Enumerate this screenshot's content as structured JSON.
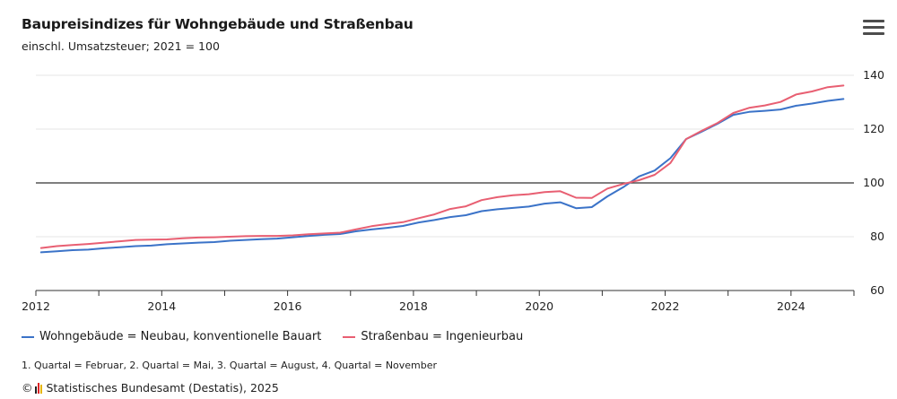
{
  "header": {
    "title": "Baupreisindizes für Wohngebäude und Straßenbau",
    "subtitle": "einschl. Umsatzsteuer; 2021 = 100"
  },
  "legend": {
    "items": [
      {
        "label": "Wohngebäude = Neubau, konventionelle Bauart",
        "color": "#3b73c8"
      },
      {
        "label": "Straßenbau = Ingenieurbau",
        "color": "#e85f72"
      }
    ]
  },
  "footnote": "1. Quartal = Februar, 2. Quartal = Mai, 3. Quartal = August, 4. Quartal = November",
  "credits": {
    "copyright": "©",
    "text": "Statistisches Bundesamt (Destatis), 2025"
  },
  "menu": {
    "icon": "hamburger-menu-icon"
  },
  "chart_data": {
    "type": "line",
    "ylim": [
      60,
      145
    ],
    "yticks": [
      60,
      80,
      100,
      120,
      140
    ],
    "xlim": [
      2012,
      2025
    ],
    "xticks": [
      2012,
      2014,
      2016,
      2018,
      2020,
      2022,
      2024
    ],
    "reference_line": 100,
    "grid": true,
    "y_axis_position": "right",
    "legend_position": "bottom",
    "x": [
      "2012-Q1",
      "2012-Q2",
      "2012-Q3",
      "2012-Q4",
      "2013-Q1",
      "2013-Q2",
      "2013-Q3",
      "2013-Q4",
      "2014-Q1",
      "2014-Q2",
      "2014-Q3",
      "2014-Q4",
      "2015-Q1",
      "2015-Q2",
      "2015-Q3",
      "2015-Q4",
      "2016-Q1",
      "2016-Q2",
      "2016-Q3",
      "2016-Q4",
      "2017-Q1",
      "2017-Q2",
      "2017-Q3",
      "2017-Q4",
      "2018-Q1",
      "2018-Q2",
      "2018-Q3",
      "2018-Q4",
      "2019-Q1",
      "2019-Q2",
      "2019-Q3",
      "2019-Q4",
      "2020-Q1",
      "2020-Q2",
      "2020-Q3",
      "2020-Q4",
      "2021-Q1",
      "2021-Q2",
      "2021-Q3",
      "2021-Q4",
      "2022-Q1",
      "2022-Q2",
      "2022-Q3",
      "2022-Q4",
      "2023-Q1",
      "2023-Q2",
      "2023-Q3",
      "2023-Q4",
      "2024-Q1",
      "2024-Q2",
      "2024-Q3",
      "2024-Q4"
    ],
    "series": [
      {
        "name": "Wohngebäude = Neubau, konventionelle Bauart",
        "color": "#3b73c8",
        "values": [
          74.2,
          74.6,
          75.0,
          75.2,
          75.7,
          76.1,
          76.5,
          76.7,
          77.2,
          77.5,
          77.8,
          78.0,
          78.5,
          78.8,
          79.1,
          79.3,
          79.8,
          80.3,
          80.7,
          81.0,
          82.0,
          82.7,
          83.3,
          84.0,
          85.3,
          86.2,
          87.3,
          88.0,
          89.5,
          90.2,
          90.7,
          91.2,
          92.3,
          92.8,
          90.6,
          91.0,
          95.0,
          98.4,
          102.4,
          104.6,
          109.2,
          116.3,
          119.1,
          122.0,
          125.3,
          126.4,
          126.8,
          127.3,
          128.7,
          129.5,
          130.5,
          131.2
        ]
      },
      {
        "name": "Straßenbau = Ingenieurbau",
        "color": "#e85f72",
        "values": [
          75.8,
          76.5,
          76.9,
          77.3,
          77.8,
          78.3,
          78.8,
          78.9,
          79.0,
          79.4,
          79.7,
          79.8,
          80.0,
          80.2,
          80.3,
          80.3,
          80.5,
          80.9,
          81.2,
          81.5,
          82.7,
          83.9,
          84.7,
          85.4,
          86.9,
          88.3,
          90.3,
          91.3,
          93.6,
          94.7,
          95.4,
          95.8,
          96.6,
          96.9,
          94.5,
          94.4,
          97.9,
          99.6,
          101.0,
          103.0,
          107.4,
          116.3,
          119.4,
          122.3,
          126.0,
          127.9,
          128.8,
          130.1,
          132.9,
          134.0,
          135.6,
          136.2
        ]
      }
    ]
  }
}
